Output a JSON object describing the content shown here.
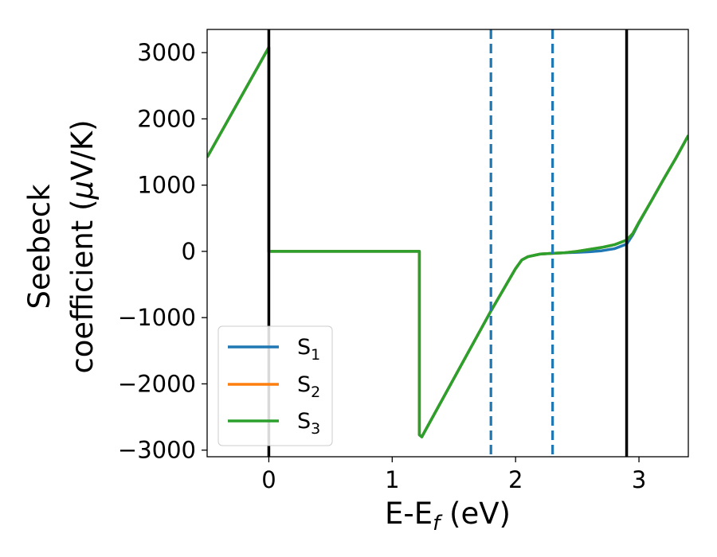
{
  "chart_data": {
    "type": "line",
    "xlabel": "E-E",
    "xlabel_sub": "f",
    "xlabel_unit": " (eV)",
    "ylabel_line1": "Seebeck",
    "ylabel_line2": "coefficient  (",
    "ylabel_mu": "μ",
    "ylabel_unit": "V/K)",
    "xlim": [
      -0.5,
      3.4
    ],
    "ylim": [
      -3100,
      3350
    ],
    "x_ticks": [
      0,
      1,
      2,
      3
    ],
    "x_tick_labels": [
      "0",
      "1",
      "2",
      "3"
    ],
    "y_ticks": [
      3000,
      2000,
      1000,
      0,
      -1000,
      -2000,
      -3000
    ],
    "y_tick_labels": [
      "3000",
      "2000",
      "1000",
      "0",
      "−1000",
      "−2000",
      "−3000"
    ],
    "grid": false,
    "legend_position": "lower-left",
    "vlines": [
      {
        "x": 0.0,
        "style": "solid",
        "color": "#000000"
      },
      {
        "x": 2.9,
        "style": "solid",
        "color": "#000000"
      },
      {
        "x": 1.8,
        "style": "dashed",
        "color": "#1f77b4"
      },
      {
        "x": 2.3,
        "style": "dashed",
        "color": "#1f77b4"
      }
    ],
    "series": [
      {
        "name": "S",
        "sub": "1",
        "color": "#1f77b4",
        "x": [
          -0.5,
          0.0,
          0.0,
          1.22,
          1.22,
          1.24,
          1.8,
          1.9,
          2.0,
          2.05,
          2.1,
          2.2,
          2.3,
          2.4,
          2.5,
          2.6,
          2.7,
          2.8,
          2.9,
          2.95,
          3.0,
          3.1,
          3.2,
          3.3,
          3.4
        ],
        "y": [
          1420,
          3080,
          0,
          0,
          -2770,
          -2800,
          -900,
          -580,
          -260,
          -130,
          -80,
          -40,
          -30,
          -20,
          -15,
          -5,
          10,
          40,
          110,
          250,
          430,
          760,
          1090,
          1410,
          1750
        ]
      },
      {
        "name": "S",
        "sub": "2",
        "color": "#ff7f0e",
        "x": [
          -0.5,
          0.0,
          0.0,
          1.22,
          1.22,
          1.24,
          1.8,
          1.9,
          2.0,
          2.05,
          2.1,
          2.2,
          2.3,
          2.4,
          2.5,
          2.6,
          2.7,
          2.8,
          2.9,
          2.95,
          3.0,
          3.1,
          3.2,
          3.3,
          3.4
        ],
        "y": [
          1420,
          3080,
          0,
          0,
          -2770,
          -2800,
          -900,
          -580,
          -260,
          -130,
          -80,
          -40,
          -30,
          -20,
          0,
          30,
          60,
          100,
          170,
          270,
          440,
          760,
          1090,
          1410,
          1750
        ]
      },
      {
        "name": "S",
        "sub": "3",
        "color": "#2ca02c",
        "x": [
          -0.5,
          0.0,
          0.0,
          1.22,
          1.22,
          1.24,
          1.8,
          1.9,
          2.0,
          2.05,
          2.1,
          2.2,
          2.3,
          2.4,
          2.5,
          2.6,
          2.7,
          2.8,
          2.9,
          2.95,
          3.0,
          3.1,
          3.2,
          3.3,
          3.4
        ],
        "y": [
          1420,
          3080,
          0,
          0,
          -2770,
          -2800,
          -900,
          -580,
          -260,
          -130,
          -80,
          -40,
          -30,
          -20,
          0,
          30,
          60,
          100,
          170,
          270,
          440,
          760,
          1090,
          1410,
          1750
        ]
      }
    ]
  }
}
